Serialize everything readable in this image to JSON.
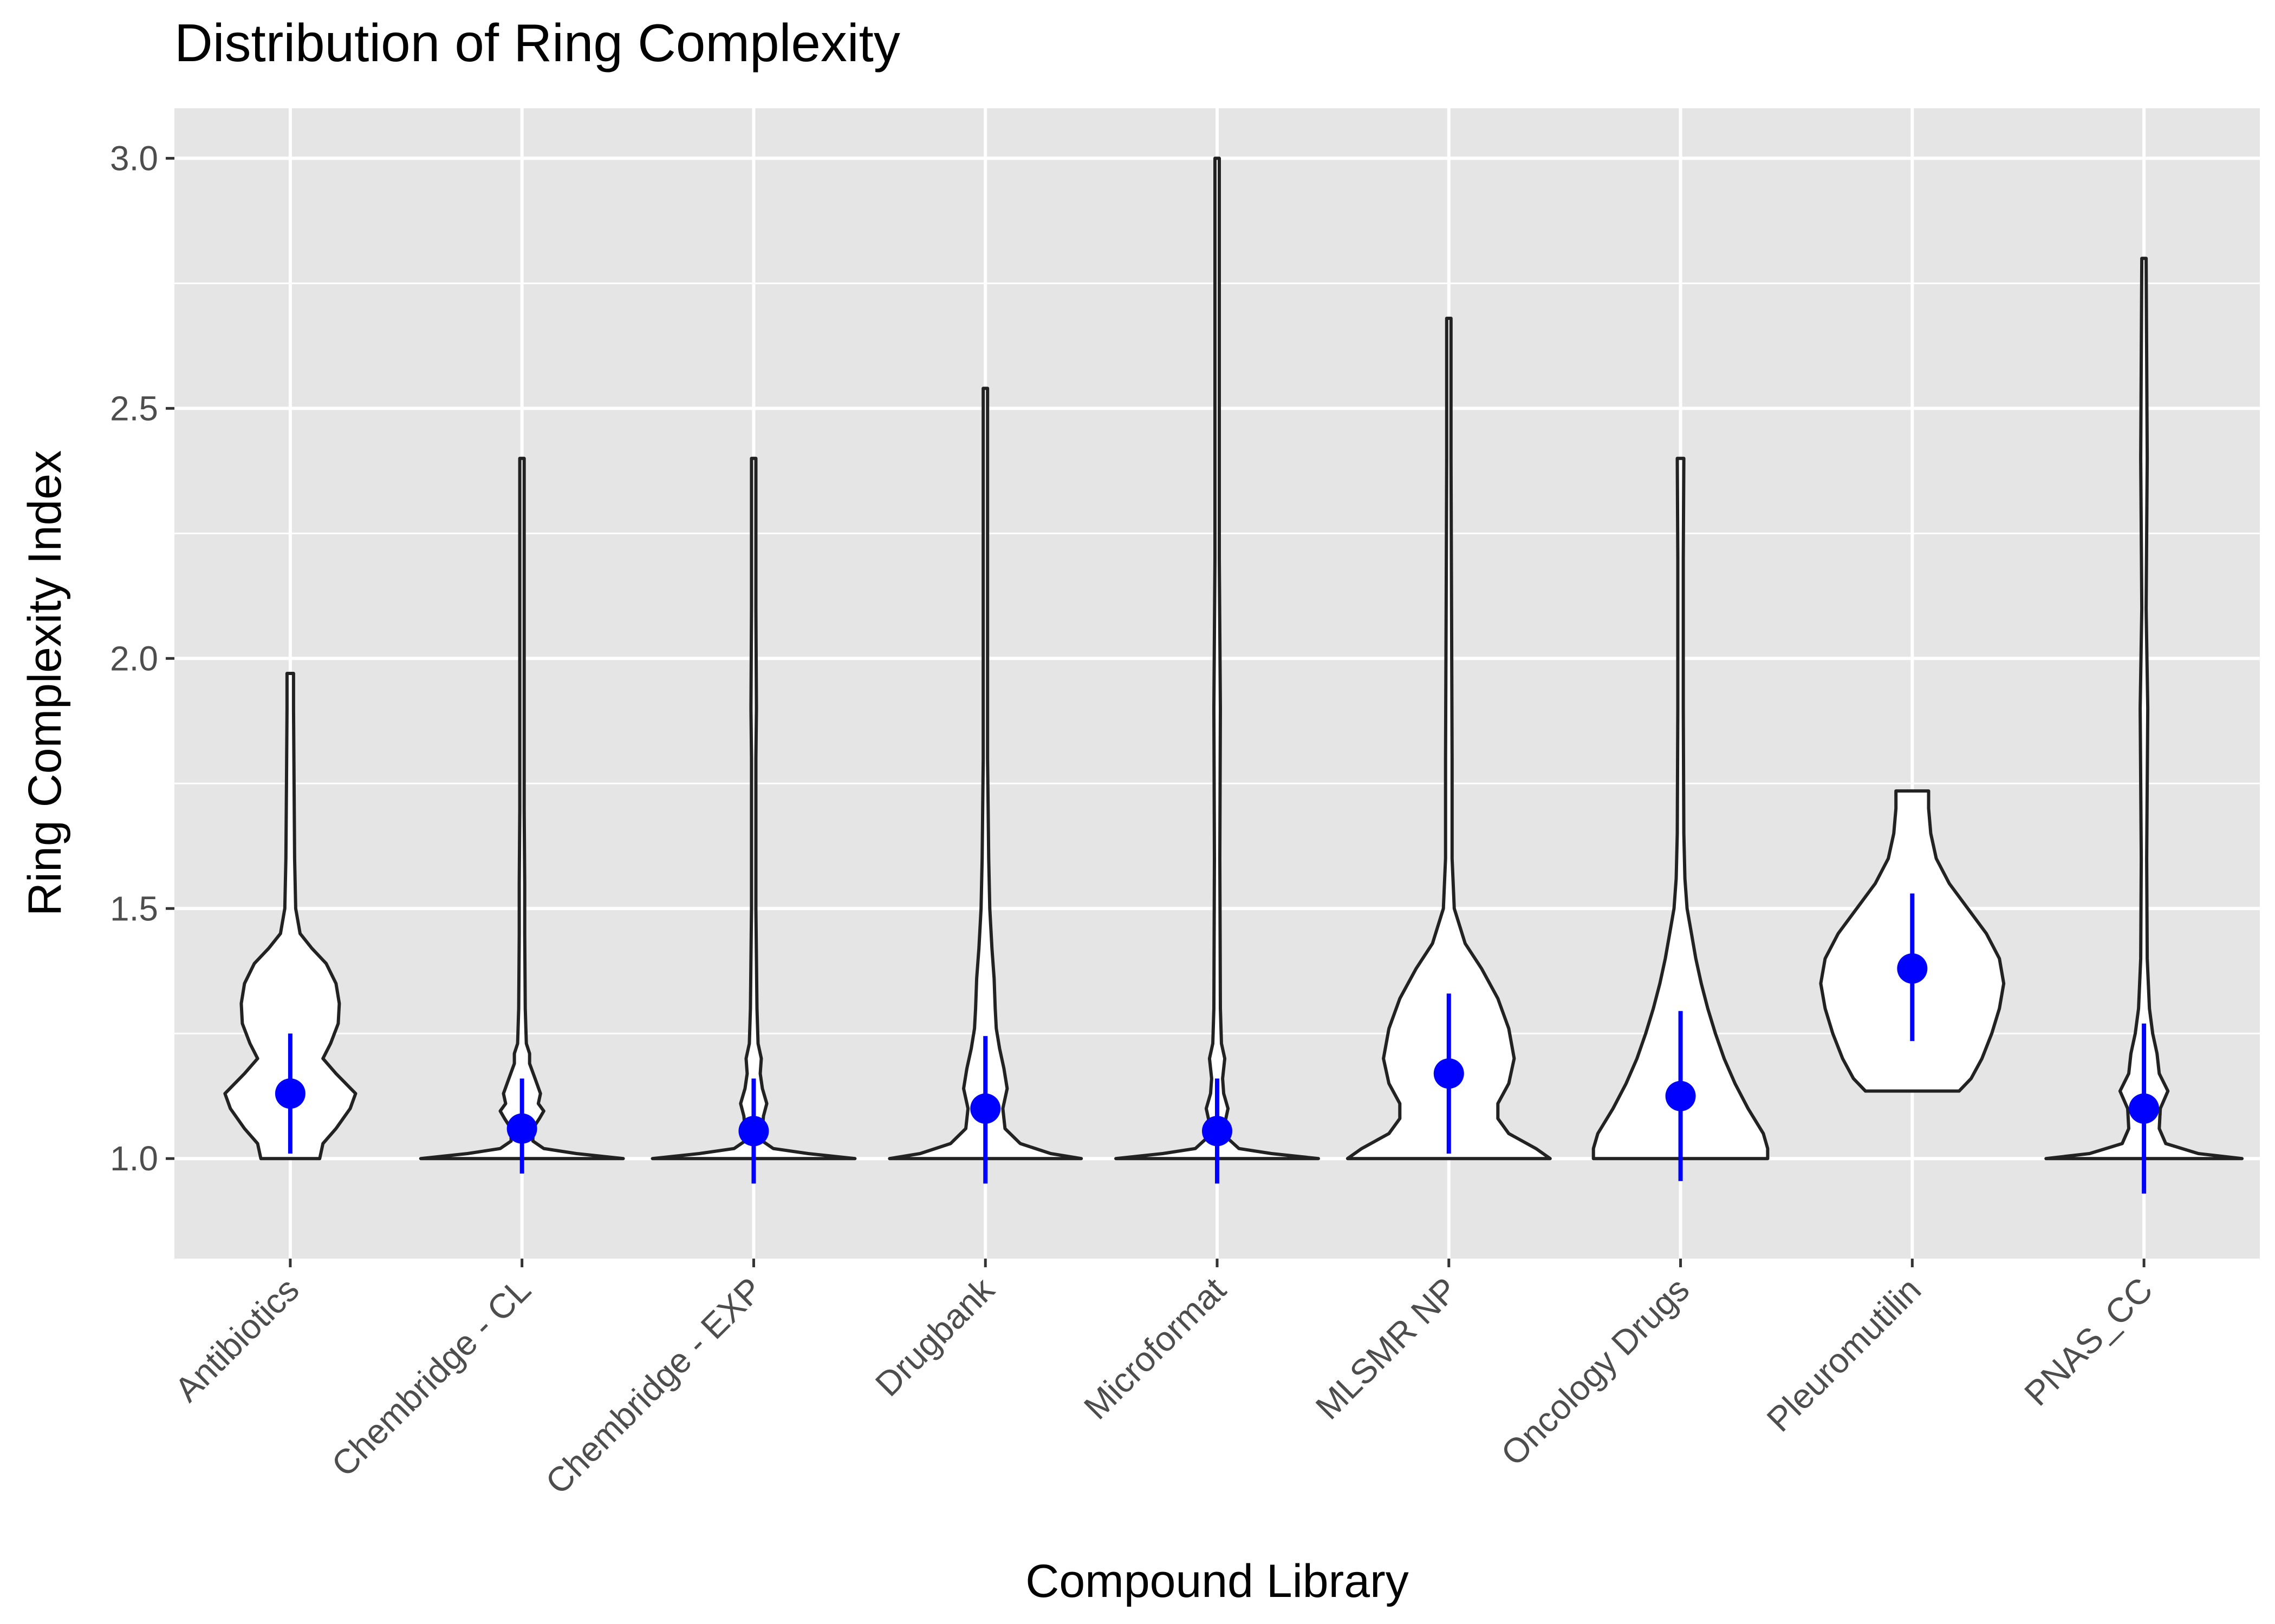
{
  "chart_data": {
    "type": "violin",
    "title": "Distribution of Ring Complexity",
    "xlabel": "Compound Library",
    "ylabel": "Ring Complexity Index",
    "ylim": [
      0.8,
      3.1
    ],
    "yticks": [
      1.0,
      1.5,
      2.0,
      2.5,
      3.0
    ],
    "ytick_labels": [
      "1.0",
      "1.5",
      "2.0",
      "2.5",
      "3.0"
    ],
    "grid": true,
    "legend": "none",
    "colors": {
      "panel": "#e5e5e5",
      "grid": "#ffffff",
      "violin_fill": "#ffffff",
      "violin_stroke": "#222222",
      "summary": "#0000ff",
      "tick_text": "#4d4d4d"
    },
    "summary_description": "mean ± sd",
    "categories": [
      "Antibiotics",
      "Chembridge - CL",
      "Chembridge - EXP",
      "Drugbank",
      "Microformat",
      "MLSMR NP",
      "Oncology Drugs",
      "Pleuromutilin",
      "PNAS_CC"
    ],
    "groups": [
      {
        "name": "Antibiotics",
        "min": 1.0,
        "max": 1.97,
        "mean": 1.13,
        "sd_low": 1.01,
        "sd_high": 1.25,
        "density": [
          [
            1.0,
            0.27
          ],
          [
            1.03,
            0.3
          ],
          [
            1.06,
            0.42
          ],
          [
            1.1,
            0.55
          ],
          [
            1.13,
            0.6
          ],
          [
            1.17,
            0.42
          ],
          [
            1.2,
            0.3
          ],
          [
            1.23,
            0.37
          ],
          [
            1.27,
            0.44
          ],
          [
            1.31,
            0.45
          ],
          [
            1.35,
            0.42
          ],
          [
            1.39,
            0.33
          ],
          [
            1.42,
            0.2
          ],
          [
            1.45,
            0.09
          ],
          [
            1.5,
            0.05
          ],
          [
            1.6,
            0.04
          ],
          [
            1.75,
            0.035
          ],
          [
            1.9,
            0.03
          ],
          [
            1.97,
            0.03
          ]
        ]
      },
      {
        "name": "Chembridge - CL",
        "min": 1.0,
        "max": 2.4,
        "mean": 1.06,
        "sd_low": 0.97,
        "sd_high": 1.16,
        "density": [
          [
            1.0,
            0.93
          ],
          [
            1.01,
            0.5
          ],
          [
            1.02,
            0.2
          ],
          [
            1.035,
            0.1
          ],
          [
            1.06,
            0.1
          ],
          [
            1.08,
            0.16
          ],
          [
            1.095,
            0.2
          ],
          [
            1.11,
            0.15
          ],
          [
            1.13,
            0.17
          ],
          [
            1.16,
            0.12
          ],
          [
            1.19,
            0.07
          ],
          [
            1.21,
            0.07
          ],
          [
            1.23,
            0.04
          ],
          [
            1.3,
            0.03
          ],
          [
            1.45,
            0.025
          ],
          [
            1.55,
            0.025
          ],
          [
            1.7,
            0.02
          ],
          [
            2.0,
            0.02
          ],
          [
            2.4,
            0.02
          ]
        ]
      },
      {
        "name": "Chembridge - EXP",
        "min": 1.0,
        "max": 2.4,
        "mean": 1.055,
        "sd_low": 0.95,
        "sd_high": 1.16,
        "density": [
          [
            1.0,
            0.93
          ],
          [
            1.01,
            0.5
          ],
          [
            1.02,
            0.18
          ],
          [
            1.035,
            0.08
          ],
          [
            1.06,
            0.08
          ],
          [
            1.085,
            0.09
          ],
          [
            1.11,
            0.12
          ],
          [
            1.14,
            0.08
          ],
          [
            1.17,
            0.06
          ],
          [
            1.2,
            0.07
          ],
          [
            1.23,
            0.04
          ],
          [
            1.3,
            0.03
          ],
          [
            1.5,
            0.02
          ],
          [
            1.8,
            0.02
          ],
          [
            1.9,
            0.025
          ],
          [
            2.1,
            0.02
          ],
          [
            2.4,
            0.02
          ]
        ]
      },
      {
        "name": "Drugbank",
        "min": 1.0,
        "max": 2.54,
        "mean": 1.1,
        "sd_low": 0.95,
        "sd_high": 1.245,
        "density": [
          [
            1.0,
            0.88
          ],
          [
            1.01,
            0.6
          ],
          [
            1.03,
            0.32
          ],
          [
            1.06,
            0.18
          ],
          [
            1.1,
            0.16
          ],
          [
            1.14,
            0.2
          ],
          [
            1.18,
            0.17
          ],
          [
            1.22,
            0.13
          ],
          [
            1.26,
            0.1
          ],
          [
            1.3,
            0.09
          ],
          [
            1.36,
            0.08
          ],
          [
            1.42,
            0.06
          ],
          [
            1.5,
            0.04
          ],
          [
            1.6,
            0.03
          ],
          [
            1.8,
            0.02
          ],
          [
            2.1,
            0.02
          ],
          [
            2.54,
            0.02
          ]
        ]
      },
      {
        "name": "Microformat",
        "min": 1.0,
        "max": 3.0,
        "mean": 1.055,
        "sd_low": 0.95,
        "sd_high": 1.16,
        "density": [
          [
            1.0,
            0.93
          ],
          [
            1.01,
            0.5
          ],
          [
            1.02,
            0.2
          ],
          [
            1.04,
            0.1
          ],
          [
            1.07,
            0.07
          ],
          [
            1.1,
            0.1
          ],
          [
            1.13,
            0.06
          ],
          [
            1.16,
            0.05
          ],
          [
            1.2,
            0.07
          ],
          [
            1.23,
            0.04
          ],
          [
            1.3,
            0.03
          ],
          [
            1.6,
            0.025
          ],
          [
            1.9,
            0.03
          ],
          [
            2.2,
            0.02
          ],
          [
            2.6,
            0.02
          ],
          [
            3.0,
            0.02
          ]
        ]
      },
      {
        "name": "MLSMR NP",
        "min": 1.0,
        "max": 2.68,
        "mean": 1.17,
        "sd_low": 1.01,
        "sd_high": 1.33,
        "density": [
          [
            1.0,
            0.93
          ],
          [
            1.02,
            0.8
          ],
          [
            1.05,
            0.55
          ],
          [
            1.08,
            0.45
          ],
          [
            1.11,
            0.45
          ],
          [
            1.15,
            0.55
          ],
          [
            1.2,
            0.6
          ],
          [
            1.26,
            0.55
          ],
          [
            1.32,
            0.45
          ],
          [
            1.38,
            0.3
          ],
          [
            1.43,
            0.15
          ],
          [
            1.5,
            0.05
          ],
          [
            1.6,
            0.03
          ],
          [
            1.8,
            0.03
          ],
          [
            2.1,
            0.025
          ],
          [
            2.4,
            0.02
          ],
          [
            2.68,
            0.02
          ]
        ]
      },
      {
        "name": "Oncology Drugs",
        "min": 1.0,
        "max": 2.4,
        "mean": 1.125,
        "sd_low": 0.955,
        "sd_high": 1.295,
        "density": [
          [
            1.0,
            0.8
          ],
          [
            1.02,
            0.8
          ],
          [
            1.05,
            0.76
          ],
          [
            1.1,
            0.62
          ],
          [
            1.15,
            0.5
          ],
          [
            1.2,
            0.4
          ],
          [
            1.25,
            0.32
          ],
          [
            1.3,
            0.25
          ],
          [
            1.35,
            0.19
          ],
          [
            1.4,
            0.14
          ],
          [
            1.45,
            0.1
          ],
          [
            1.5,
            0.06
          ],
          [
            1.56,
            0.04
          ],
          [
            1.65,
            0.03
          ],
          [
            1.9,
            0.025
          ],
          [
            2.2,
            0.025
          ],
          [
            2.4,
            0.03
          ]
        ]
      },
      {
        "name": "Pleuromutilin",
        "min": 1.135,
        "max": 1.735,
        "mean": 1.38,
        "sd_low": 1.235,
        "sd_high": 1.53,
        "density": [
          [
            1.135,
            0.43
          ],
          [
            1.16,
            0.54
          ],
          [
            1.2,
            0.64
          ],
          [
            1.25,
            0.73
          ],
          [
            1.3,
            0.8
          ],
          [
            1.35,
            0.84
          ],
          [
            1.4,
            0.8
          ],
          [
            1.45,
            0.68
          ],
          [
            1.5,
            0.51
          ],
          [
            1.55,
            0.34
          ],
          [
            1.6,
            0.22
          ],
          [
            1.65,
            0.17
          ],
          [
            1.7,
            0.15
          ],
          [
            1.735,
            0.15
          ]
        ]
      },
      {
        "name": "PNAS_CC",
        "min": 1.0,
        "max": 2.8,
        "mean": 1.1,
        "sd_low": 0.93,
        "sd_high": 1.27,
        "density": [
          [
            1.0,
            0.9
          ],
          [
            1.01,
            0.5
          ],
          [
            1.03,
            0.2
          ],
          [
            1.06,
            0.14
          ],
          [
            1.1,
            0.15
          ],
          [
            1.135,
            0.22
          ],
          [
            1.17,
            0.14
          ],
          [
            1.21,
            0.12
          ],
          [
            1.25,
            0.08
          ],
          [
            1.3,
            0.05
          ],
          [
            1.4,
            0.03
          ],
          [
            1.6,
            0.025
          ],
          [
            1.9,
            0.035
          ],
          [
            2.1,
            0.02
          ],
          [
            2.4,
            0.03
          ],
          [
            2.8,
            0.02
          ]
        ]
      }
    ]
  }
}
